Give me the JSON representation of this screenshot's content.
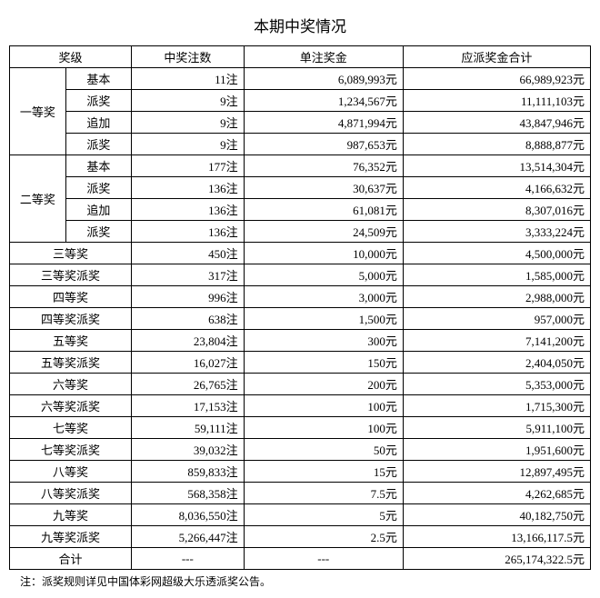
{
  "title": "本期中奖情况",
  "headers": {
    "level": "奖级",
    "count": "中奖注数",
    "amount": "单注奖金",
    "total": "应派奖金合计"
  },
  "groups": [
    {
      "name": "一等奖",
      "sub": [
        {
          "label": "基本",
          "count": "11注",
          "amount": "6,089,993元",
          "total": "66,989,923元"
        },
        {
          "label": "派奖",
          "count": "9注",
          "amount": "1,234,567元",
          "total": "11,111,103元"
        },
        {
          "label": "追加",
          "count": "9注",
          "amount": "4,871,994元",
          "total": "43,847,946元"
        },
        {
          "label": "派奖",
          "count": "9注",
          "amount": "987,653元",
          "total": "8,888,877元"
        }
      ]
    },
    {
      "name": "二等奖",
      "sub": [
        {
          "label": "基本",
          "count": "177注",
          "amount": "76,352元",
          "total": "13,514,304元"
        },
        {
          "label": "派奖",
          "count": "136注",
          "amount": "30,637元",
          "total": "4,166,632元"
        },
        {
          "label": "追加",
          "count": "136注",
          "amount": "61,081元",
          "total": "8,307,016元"
        },
        {
          "label": "派奖",
          "count": "136注",
          "amount": "24,509元",
          "total": "3,333,224元"
        }
      ]
    }
  ],
  "flat": [
    {
      "label": "三等奖",
      "count": "450注",
      "amount": "10,000元",
      "total": "4,500,000元"
    },
    {
      "label": "三等奖派奖",
      "count": "317注",
      "amount": "5,000元",
      "total": "1,585,000元"
    },
    {
      "label": "四等奖",
      "count": "996注",
      "amount": "3,000元",
      "total": "2,988,000元"
    },
    {
      "label": "四等奖派奖",
      "count": "638注",
      "amount": "1,500元",
      "total": "957,000元"
    },
    {
      "label": "五等奖",
      "count": "23,804注",
      "amount": "300元",
      "total": "7,141,200元"
    },
    {
      "label": "五等奖派奖",
      "count": "16,027注",
      "amount": "150元",
      "total": "2,404,050元"
    },
    {
      "label": "六等奖",
      "count": "26,765注",
      "amount": "200元",
      "total": "5,353,000元"
    },
    {
      "label": "六等奖派奖",
      "count": "17,153注",
      "amount": "100元",
      "total": "1,715,300元"
    },
    {
      "label": "七等奖",
      "count": "59,111注",
      "amount": "100元",
      "total": "5,911,100元"
    },
    {
      "label": "七等奖派奖",
      "count": "39,032注",
      "amount": "50元",
      "total": "1,951,600元"
    },
    {
      "label": "八等奖",
      "count": "859,833注",
      "amount": "15元",
      "total": "12,897,495元"
    },
    {
      "label": "八等奖派奖",
      "count": "568,358注",
      "amount": "7.5元",
      "total": "4,262,685元"
    },
    {
      "label": "九等奖",
      "count": "8,036,550注",
      "amount": "5元",
      "total": "40,182,750元"
    },
    {
      "label": "九等奖派奖",
      "count": "5,266,447注",
      "amount": "2.5元",
      "total": "13,166,117.5元"
    }
  ],
  "totalRow": {
    "label": "合计",
    "count": "---",
    "amount": "---",
    "total": "265,174,322.5元"
  },
  "footnote": "注：派奖规则详见中国体彩网超级大乐透派奖公告。"
}
